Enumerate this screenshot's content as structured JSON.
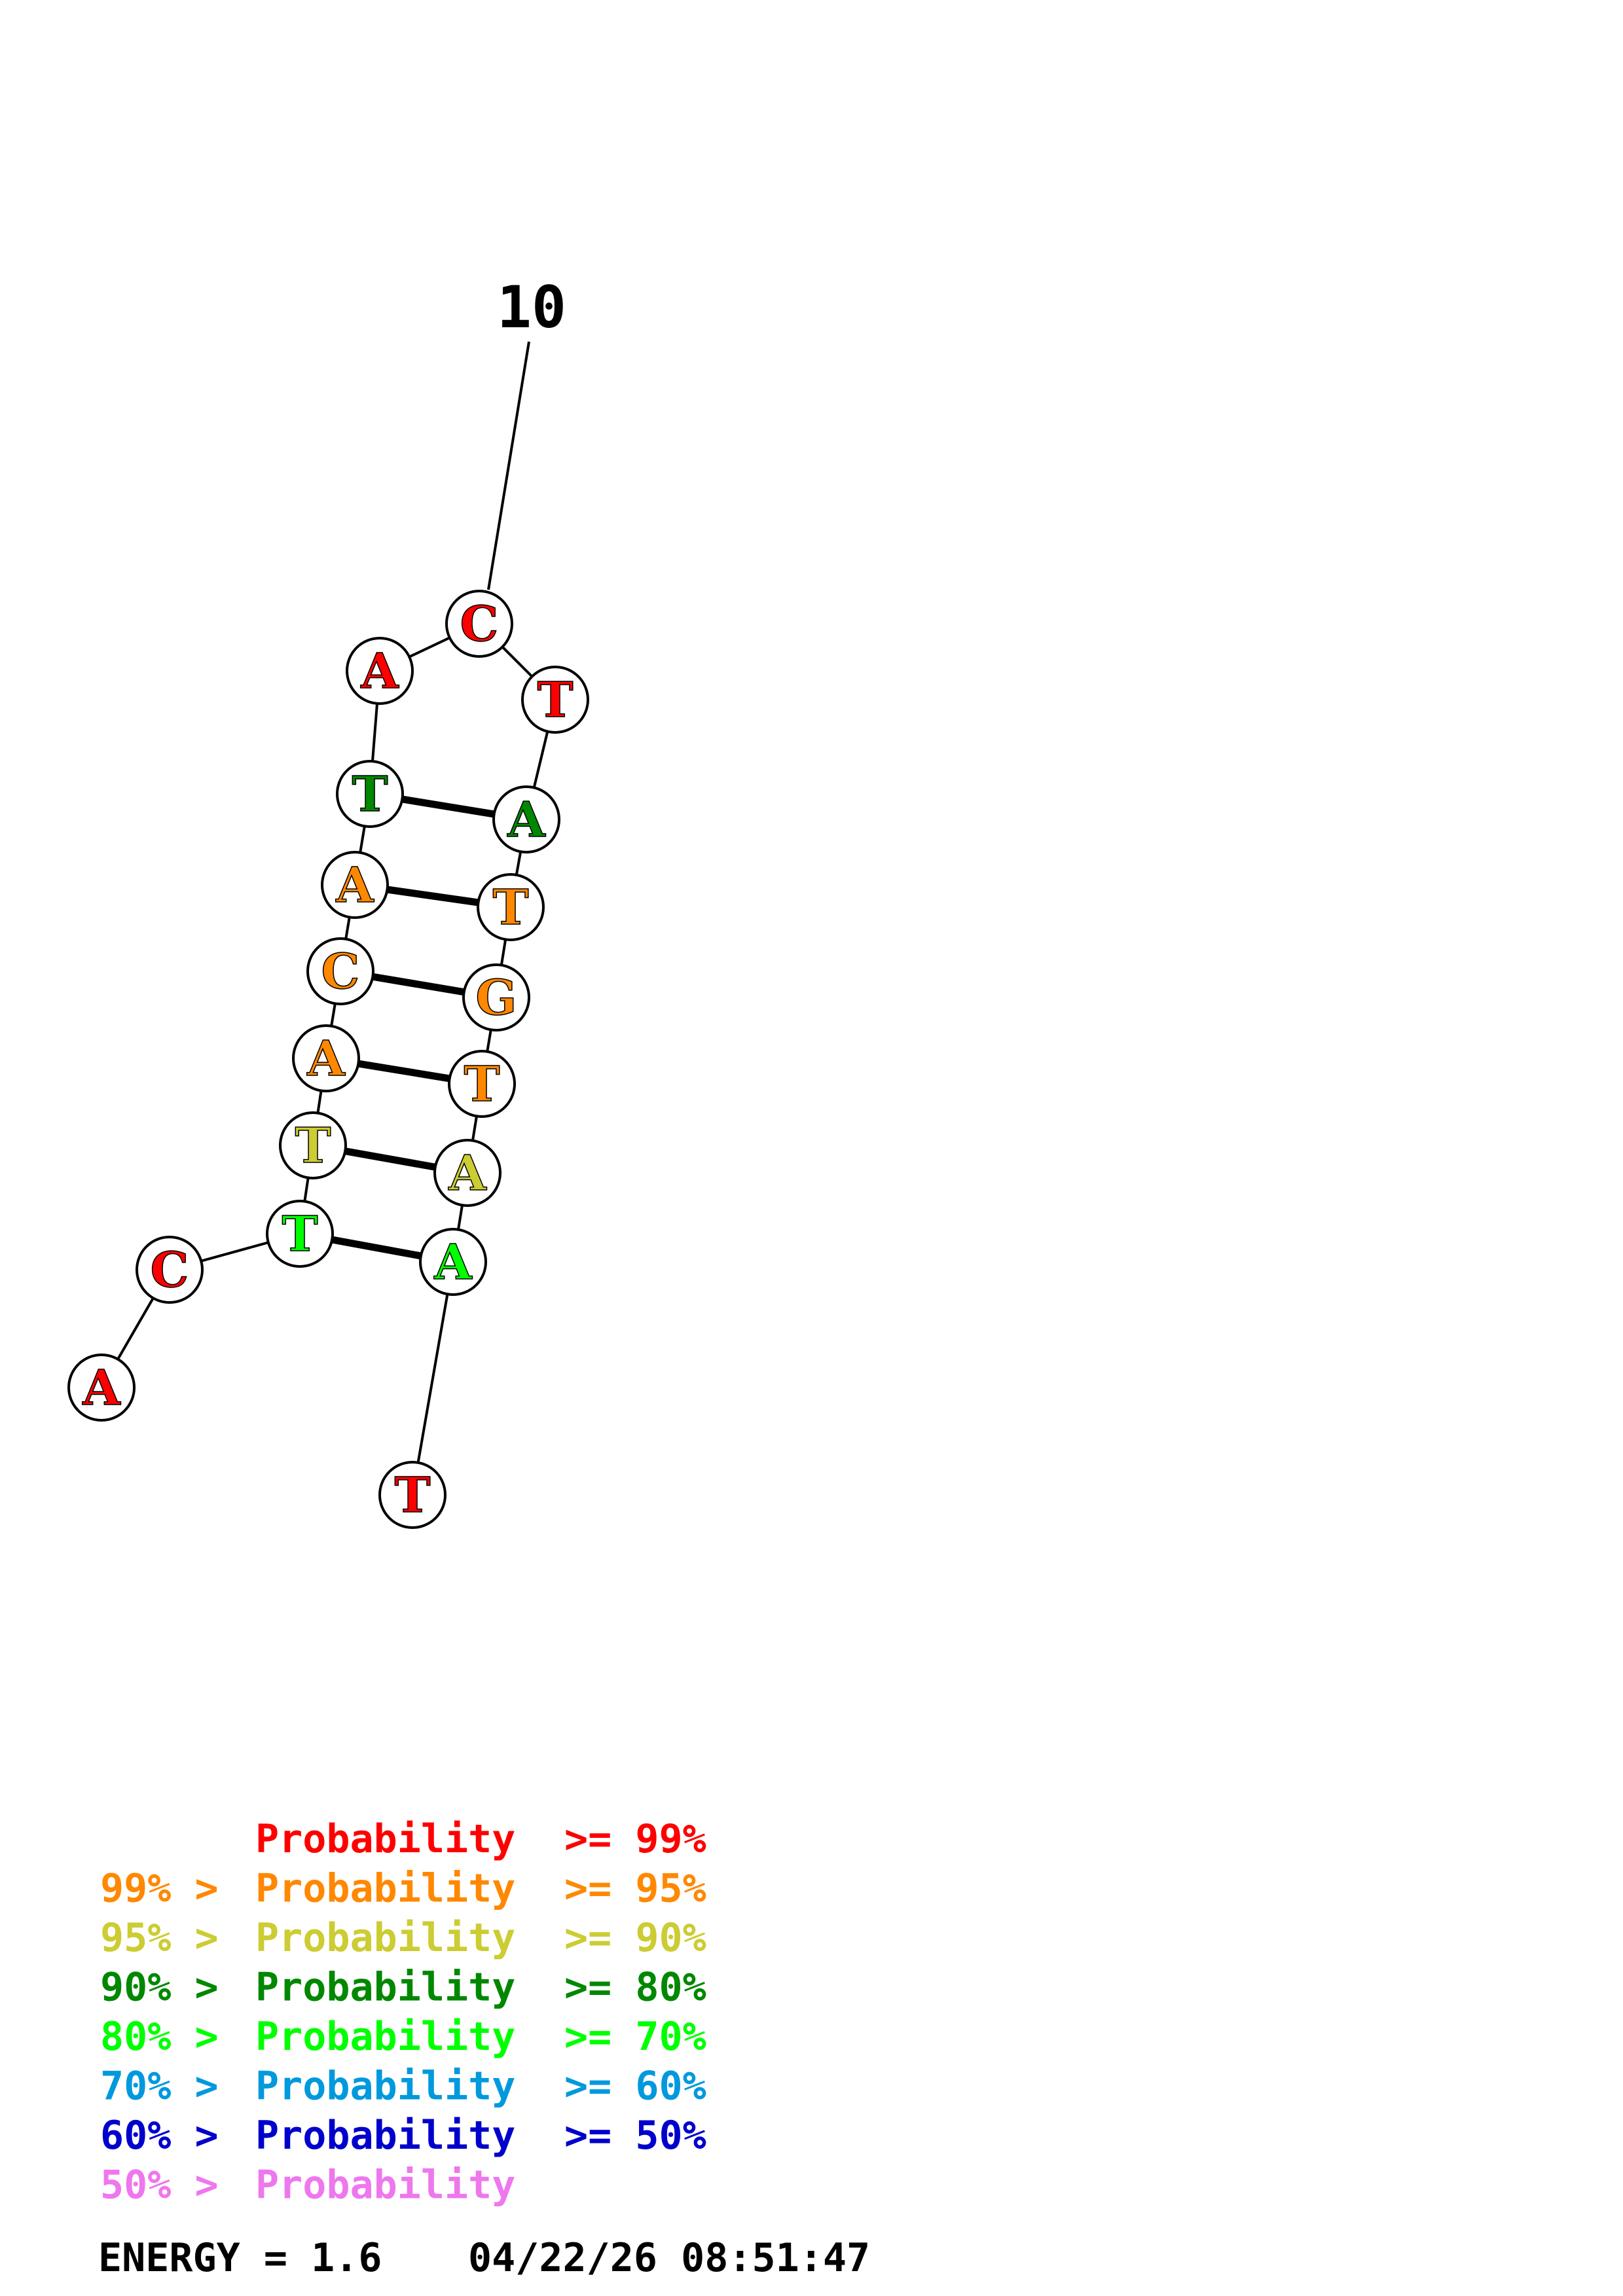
{
  "structure": {
    "tick_label": "10",
    "nucleotides": [
      {
        "id": 1,
        "base": "A",
        "color": "#ff0000"
      },
      {
        "id": 2,
        "base": "C",
        "color": "#ff0000"
      },
      {
        "id": 3,
        "base": "T",
        "color": "#00ff00"
      },
      {
        "id": 4,
        "base": "T",
        "color": "#cccc33"
      },
      {
        "id": 5,
        "base": "A",
        "color": "#ff8800"
      },
      {
        "id": 6,
        "base": "C",
        "color": "#ff8800"
      },
      {
        "id": 7,
        "base": "A",
        "color": "#ff8800"
      },
      {
        "id": 8,
        "base": "T",
        "color": "#008800"
      },
      {
        "id": 9,
        "base": "A",
        "color": "#ff0000"
      },
      {
        "id": 10,
        "base": "C",
        "color": "#ff0000"
      },
      {
        "id": 11,
        "base": "T",
        "color": "#ff0000"
      },
      {
        "id": 12,
        "base": "A",
        "color": "#008800"
      },
      {
        "id": 13,
        "base": "T",
        "color": "#ff8800"
      },
      {
        "id": 14,
        "base": "G",
        "color": "#ff8800"
      },
      {
        "id": 15,
        "base": "T",
        "color": "#ff8800"
      },
      {
        "id": 16,
        "base": "A",
        "color": "#cccc33"
      },
      {
        "id": 17,
        "base": "A",
        "color": "#00ff00"
      },
      {
        "id": 18,
        "base": "T",
        "color": "#ff0000"
      }
    ],
    "pairs": [
      [
        3,
        17
      ],
      [
        4,
        16
      ],
      [
        5,
        15
      ],
      [
        6,
        14
      ],
      [
        7,
        13
      ],
      [
        8,
        12
      ]
    ]
  },
  "legend": [
    {
      "prefix": "",
      "main": "Probability",
      "suffix": ">= 99%",
      "color": "#ff0000"
    },
    {
      "prefix": "99% >",
      "main": "Probability",
      "suffix": ">= 95%",
      "color": "#ff8800"
    },
    {
      "prefix": "95% >",
      "main": "Probability",
      "suffix": ">= 90%",
      "color": "#cccc33"
    },
    {
      "prefix": "90% >",
      "main": "Probability",
      "suffix": ">= 80%",
      "color": "#008800"
    },
    {
      "prefix": "80% >",
      "main": "Probability",
      "suffix": ">= 70%",
      "color": "#00ff00"
    },
    {
      "prefix": "70% >",
      "main": "Probability",
      "suffix": ">= 60%",
      "color": "#0099dd"
    },
    {
      "prefix": "60% >",
      "main": "Probability",
      "suffix": ">= 50%",
      "color": "#0000cc"
    },
    {
      "prefix": "50% >",
      "main": "Probability",
      "suffix": "",
      "color": "#ee77ee"
    }
  ],
  "footer": {
    "energy": "ENERGY = 1.6",
    "datetime": "04/22/26 08:51:47"
  }
}
